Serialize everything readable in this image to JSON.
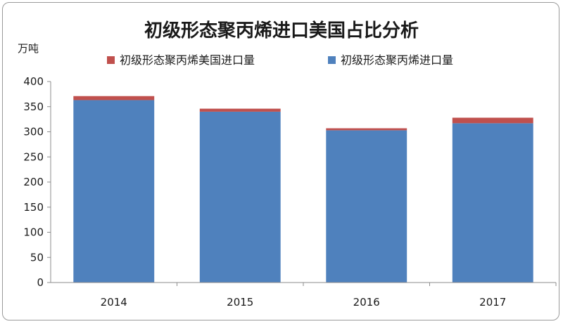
{
  "chart_data": {
    "type": "bar",
    "stacked": true,
    "title": "初级形态聚丙烯进口美国占比分析",
    "ylabel": "万吨",
    "xlabel": "",
    "categories": [
      "2014",
      "2015",
      "2016",
      "2017"
    ],
    "ylim": [
      0,
      400
    ],
    "yticks": [
      "0",
      "50",
      "100",
      "150",
      "200",
      "250",
      "300",
      "350",
      "400"
    ],
    "legend_position": "top",
    "grid": false,
    "series": [
      {
        "name": "初级形态聚丙烯进口量",
        "values": [
          363,
          340,
          303,
          317
        ],
        "color": "#4f81bd"
      },
      {
        "name": "初级形态聚丙烯美国进口量",
        "values": [
          8,
          6,
          4,
          11
        ],
        "color": "#c0504d"
      }
    ],
    "legend_order": [
      1,
      0
    ]
  }
}
